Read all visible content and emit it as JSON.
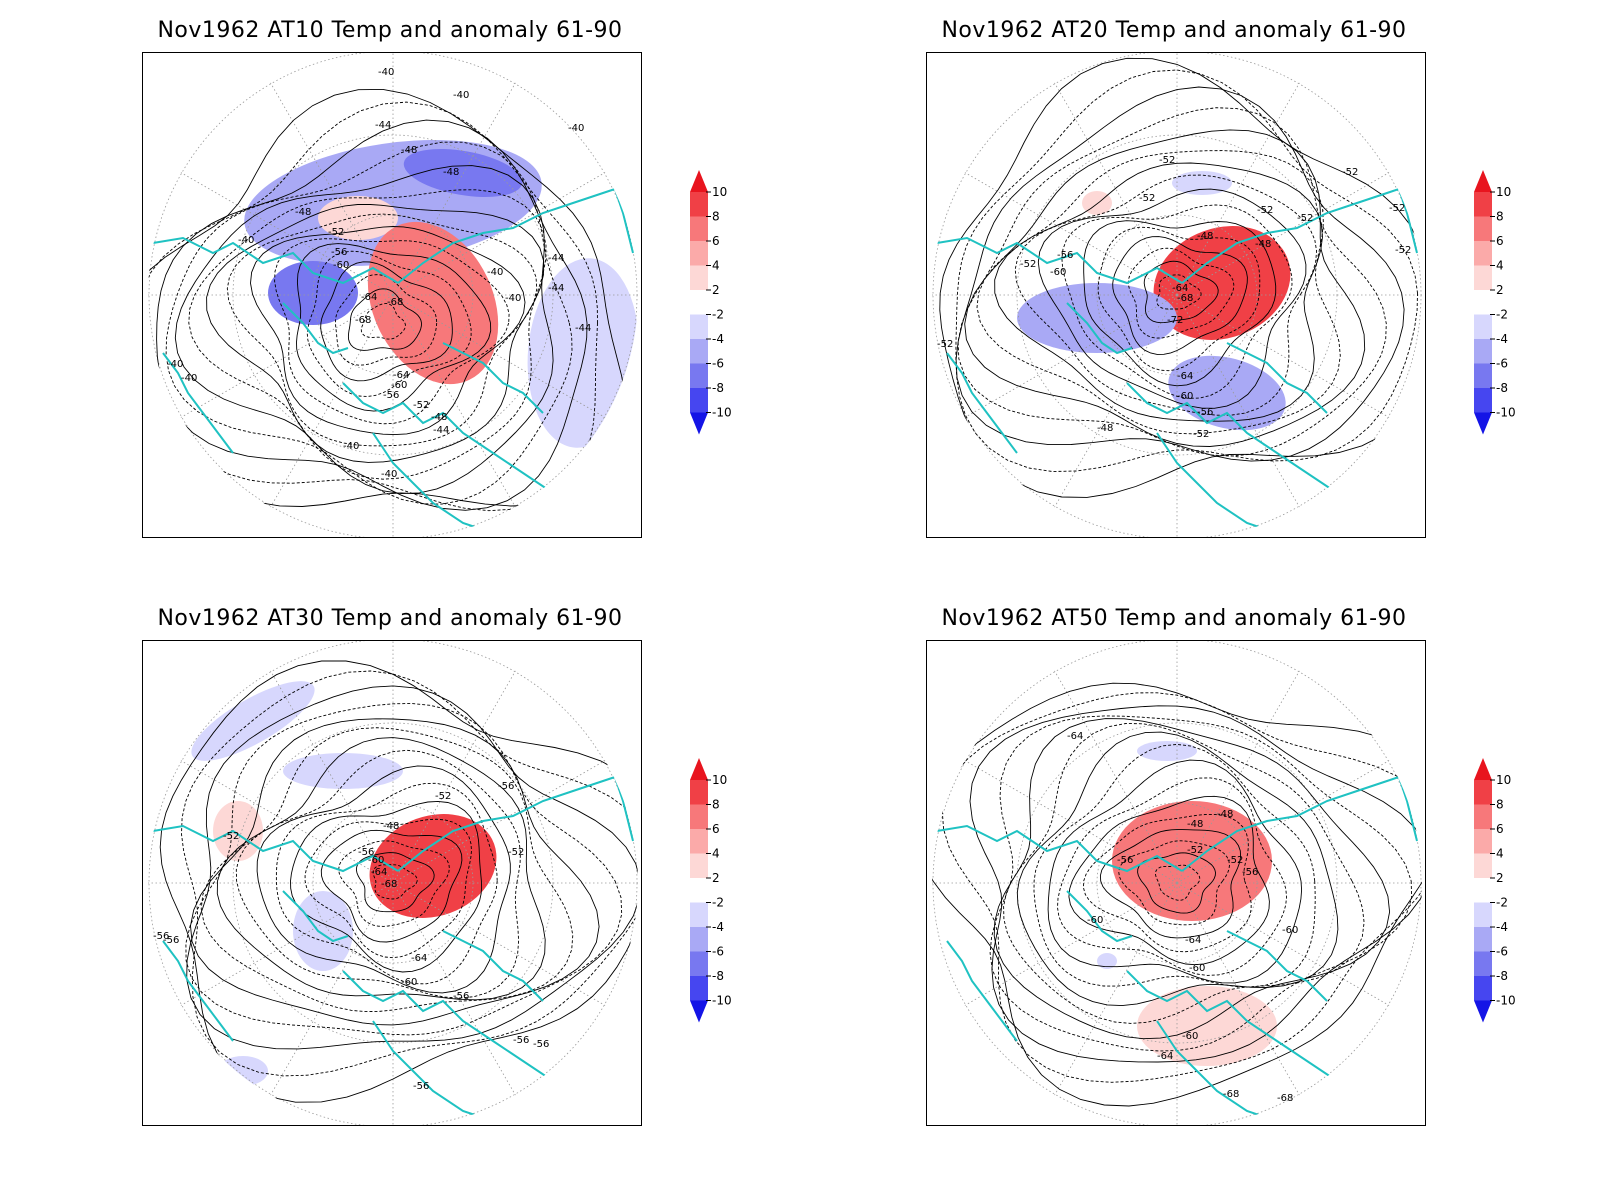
{
  "panels": [
    {
      "title": "Nov1962 AT10 Temp and anomaly 61-90",
      "contour_labels": [
        "-40",
        "-40",
        "-40",
        "-44",
        "-48",
        "-48",
        "-48",
        "-40",
        "-52",
        "-56",
        "-60",
        "-64",
        "-68",
        "-68",
        "-40",
        "-40",
        "-44",
        "-44",
        "-44",
        "-40",
        "-40",
        "-64",
        "-60",
        "-56",
        "-52",
        "-48",
        "-44",
        "-40",
        "-40"
      ],
      "anomaly_blobs": [
        {
          "sign": "cold",
          "level": 2
        },
        {
          "sign": "cold",
          "level": 3
        },
        {
          "sign": "warm",
          "level": 1
        },
        {
          "sign": "warm",
          "level": 3
        },
        {
          "sign": "cold",
          "level": 3
        },
        {
          "sign": "cold",
          "level": 1
        }
      ]
    },
    {
      "title": "Nov1962 AT20 Temp and anomaly 61-90",
      "contour_labels": [
        "-52",
        "-52",
        "-52",
        "-52",
        "-52",
        "-52",
        "-48",
        "-48",
        "-56",
        "-60",
        "-64",
        "-68",
        "-72",
        "-52",
        "-52",
        "-64",
        "-60",
        "-56",
        "-52",
        "-48",
        "-52"
      ],
      "anomaly_blobs": [
        {
          "sign": "warm",
          "level": 4
        },
        {
          "sign": "cold",
          "level": 2
        },
        {
          "sign": "cold",
          "level": 2
        },
        {
          "sign": "cold",
          "level": 1
        },
        {
          "sign": "warm",
          "level": 1
        }
      ]
    },
    {
      "title": "Nov1962 AT30 Temp and anomaly 61-90",
      "contour_labels": [
        "-52",
        "-48",
        "-52",
        "-56",
        "-56",
        "-60",
        "-64",
        "-68",
        "-52",
        "-56",
        "-56",
        "-56",
        "-64",
        "-60",
        "-56",
        "-56",
        "-56"
      ],
      "anomaly_blobs": [
        {
          "sign": "warm",
          "level": 4
        },
        {
          "sign": "cold",
          "level": 1
        },
        {
          "sign": "cold",
          "level": 1
        },
        {
          "sign": "warm",
          "level": 1
        },
        {
          "sign": "cold",
          "level": 1
        },
        {
          "sign": "cold",
          "level": 1
        }
      ]
    },
    {
      "title": "Nov1962 AT50 Temp and anomaly 61-90",
      "contour_labels": [
        "-64",
        "-48",
        "-48",
        "-52",
        "-52",
        "-56",
        "-56",
        "-60",
        "-60",
        "-64",
        "-60",
        "-60",
        "-64",
        "-68",
        "-68"
      ],
      "anomaly_blobs": [
        {
          "sign": "warm",
          "level": 3
        },
        {
          "sign": "warm",
          "level": 1
        },
        {
          "sign": "cold",
          "level": 1
        },
        {
          "sign": "cold",
          "level": 1
        }
      ]
    }
  ],
  "colorbar": {
    "labels": [
      "10",
      "8",
      "6",
      "4",
      "2",
      "-2",
      "-4",
      "-6",
      "-8",
      "-10"
    ],
    "colors": [
      "#e8141e",
      "#f04046",
      "#f7787a",
      "#fbaaa9",
      "#fdd8d6",
      "#ffffff",
      "#d7d7fd",
      "#a9a9f5",
      "#7878f0",
      "#4646f0",
      "#1414e6"
    ]
  },
  "map_colors": {
    "coastline": "#1fc2c2",
    "contour": "#000000",
    "grid": "#9a9a9a"
  }
}
